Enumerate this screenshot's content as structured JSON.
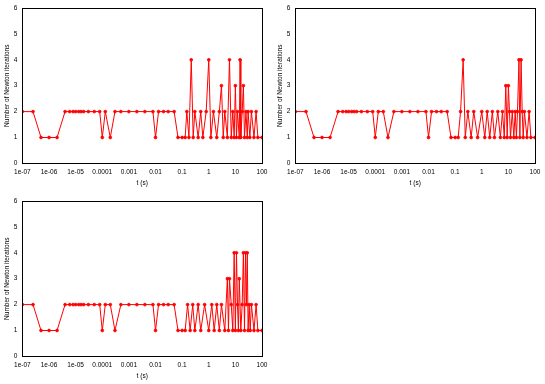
{
  "chart_data": [
    {
      "type": "line",
      "x_label": "t (s)",
      "y_label": "Number of Newton iterations",
      "log": "x",
      "grid": false,
      "color": "#ff0000",
      "marker": "circle",
      "line_style": "solid",
      "xlim": [
        1e-07,
        100
      ],
      "ylim": [
        0,
        6
      ],
      "xticks": [
        {
          "value": 1e-07,
          "label": "1e-07"
        },
        {
          "value": 1e-06,
          "label": "1e-06"
        },
        {
          "value": 1e-05,
          "label": "1e-05"
        },
        0.0001,
        0.001,
        0.01,
        0.1,
        1,
        10,
        100
      ],
      "yticks": [
        0,
        1,
        2,
        3,
        4,
        5,
        6
      ],
      "x": [
        1e-07,
        2.5e-07,
        5e-07,
        1e-06,
        2e-06,
        4e-06,
        6e-06,
        8e-06,
        1e-05,
        1.3e-05,
        1.6e-05,
        2e-05,
        3e-05,
        5e-05,
        8e-05,
        0.0001,
        0.00013,
        0.0002,
        0.0003,
        0.0005,
        0.001,
        0.002,
        0.004,
        0.008,
        0.01,
        0.013,
        0.02,
        0.03,
        0.05,
        0.07,
        0.1,
        0.13,
        0.15,
        0.18,
        0.22,
        0.26,
        0.3,
        0.4,
        0.5,
        0.6,
        0.8,
        1.0,
        1.2,
        1.5,
        2,
        2.5,
        3,
        3.5,
        4,
        5,
        6,
        7,
        8,
        9,
        10,
        11,
        12,
        14,
        15,
        16,
        18,
        20,
        22,
        25,
        28,
        30,
        35,
        40,
        50,
        60,
        70,
        100
      ],
      "values": [
        2,
        2,
        1,
        1,
        1,
        2,
        2,
        2,
        2,
        2,
        2,
        2,
        2,
        2,
        2,
        1,
        2,
        1,
        2,
        2,
        2,
        2,
        2,
        2,
        1,
        2,
        2,
        2,
        2,
        1,
        1,
        1,
        2,
        1,
        4,
        1,
        2,
        1,
        2,
        1,
        2,
        4,
        1,
        2,
        1,
        2,
        3,
        1,
        2,
        1,
        4,
        1,
        2,
        1,
        3,
        1,
        2,
        1,
        4,
        1,
        2,
        3,
        1,
        2,
        1,
        2,
        1,
        2,
        1,
        2,
        1,
        1
      ]
    },
    {
      "type": "line",
      "x_label": "t (s)",
      "y_label": "Number of Newton iterations",
      "log": "x",
      "grid": false,
      "color": "#ff0000",
      "marker": "circle",
      "line_style": "solid",
      "xlim": [
        1e-07,
        100
      ],
      "ylim": [
        0,
        6
      ],
      "xticks": [
        {
          "value": 1e-07,
          "label": "1e-07"
        },
        {
          "value": 1e-06,
          "label": "1e-06"
        },
        {
          "value": 1e-05,
          "label": "1e-05"
        },
        0.0001,
        0.001,
        0.01,
        0.1,
        1,
        10,
        100
      ],
      "yticks": [
        0,
        1,
        2,
        3,
        4,
        5,
        6
      ],
      "x": [
        1e-07,
        2.5e-07,
        5e-07,
        1e-06,
        2e-06,
        4e-06,
        6e-06,
        8e-06,
        1e-05,
        1.3e-05,
        1.6e-05,
        2e-05,
        3e-05,
        5e-05,
        8e-05,
        0.0001,
        0.00013,
        0.0002,
        0.0003,
        0.0005,
        0.001,
        0.002,
        0.004,
        0.008,
        0.01,
        0.013,
        0.02,
        0.03,
        0.05,
        0.07,
        0.1,
        0.13,
        0.16,
        0.2,
        0.24,
        0.3,
        0.4,
        0.5,
        0.7,
        1.0,
        1.3,
        1.6,
        2,
        2.5,
        3,
        4,
        5,
        6,
        7,
        8,
        9,
        10,
        11,
        12,
        14,
        16,
        18,
        20,
        22,
        25,
        27,
        30,
        33,
        36,
        40,
        50,
        60,
        70,
        100
      ],
      "values": [
        2,
        2,
        1,
        1,
        1,
        2,
        2,
        2,
        2,
        2,
        2,
        2,
        2,
        2,
        2,
        1,
        2,
        2,
        1,
        2,
        2,
        2,
        2,
        2,
        1,
        2,
        2,
        2,
        2,
        1,
        1,
        1,
        2,
        4,
        1,
        2,
        1,
        2,
        1,
        2,
        1,
        2,
        1,
        2,
        1,
        2,
        1,
        2,
        1,
        3,
        1,
        3,
        2,
        1,
        2,
        1,
        2,
        1,
        2,
        4,
        1,
        4,
        2,
        1,
        2,
        1,
        2,
        1,
        1
      ]
    },
    {
      "type": "line",
      "x_label": "t (s)",
      "y_label": "Number of Newton iterations",
      "log": "x",
      "grid": false,
      "color": "#ff0000",
      "marker": "circle",
      "line_style": "solid",
      "xlim": [
        1e-07,
        100
      ],
      "ylim": [
        0,
        6
      ],
      "xticks": [
        {
          "value": 1e-07,
          "label": "1e-07"
        },
        {
          "value": 1e-06,
          "label": "1e-06"
        },
        {
          "value": 1e-05,
          "label": "1e-05"
        },
        0.0001,
        0.001,
        0.01,
        0.1,
        1,
        10,
        100
      ],
      "yticks": [
        0,
        1,
        2,
        3,
        4,
        5,
        6
      ],
      "x": [
        1e-07,
        2.5e-07,
        5e-07,
        1e-06,
        2e-06,
        4e-06,
        6e-06,
        8e-06,
        1e-05,
        1.3e-05,
        1.6e-05,
        2e-05,
        3e-05,
        5e-05,
        8e-05,
        0.0001,
        0.00013,
        0.0002,
        0.0003,
        0.0005,
        0.001,
        0.002,
        0.004,
        0.008,
        0.01,
        0.013,
        0.02,
        0.03,
        0.05,
        0.07,
        0.1,
        0.13,
        0.16,
        0.2,
        0.25,
        0.3,
        0.4,
        0.5,
        0.7,
        1.0,
        1.3,
        1.6,
        2,
        2.5,
        3,
        4,
        5,
        5.5,
        6,
        7,
        8,
        9,
        10,
        11,
        12,
        13,
        14,
        16,
        18,
        20,
        22,
        24,
        26,
        28,
        30,
        33,
        36,
        40,
        50,
        60,
        70,
        100
      ],
      "values": [
        2,
        2,
        1,
        1,
        1,
        2,
        2,
        2,
        2,
        2,
        2,
        2,
        2,
        2,
        2,
        1,
        2,
        2,
        1,
        2,
        2,
        2,
        2,
        2,
        1,
        2,
        2,
        2,
        2,
        1,
        1,
        1,
        2,
        1,
        2,
        1,
        2,
        1,
        2,
        1,
        2,
        1,
        2,
        1,
        2,
        1,
        3,
        1,
        3,
        2,
        1,
        4,
        1,
        4,
        2,
        1,
        3,
        1,
        2,
        4,
        1,
        4,
        2,
        4,
        1,
        2,
        1,
        2,
        1,
        2,
        1,
        1
      ]
    }
  ]
}
